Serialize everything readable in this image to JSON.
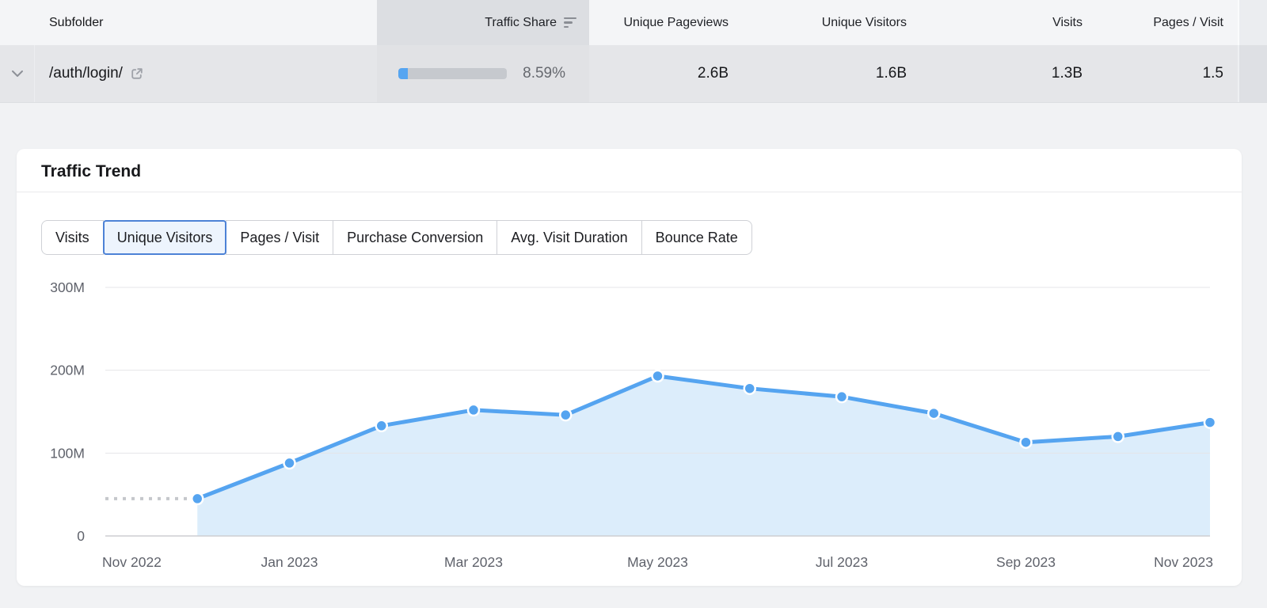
{
  "table": {
    "columns": [
      {
        "label": "Subfolder"
      },
      {
        "label": "Traffic Share",
        "sorted": true,
        "sort_icon": "sort-descending-icon"
      },
      {
        "label": "Unique Pageviews"
      },
      {
        "label": "Unique Visitors"
      },
      {
        "label": "Visits"
      },
      {
        "label": "Pages / Visit"
      }
    ],
    "row": {
      "subfolder": "/auth/login/",
      "traffic_share": "8.59%",
      "traffic_share_pct": 8.59,
      "unique_pageviews": "2.6B",
      "unique_visitors": "1.6B",
      "visits": "1.3B",
      "pages_per_visit": "1.5",
      "expander_icon": "chevron-down-icon",
      "external_icon": "external-link-icon"
    }
  },
  "card": {
    "title": "Traffic Trend",
    "tabs": [
      "Visits",
      "Unique Visitors",
      "Pages / Visit",
      "Purchase Conversion",
      "Avg. Visit Duration",
      "Bounce Rate"
    ],
    "selected_tab": "Unique Visitors"
  },
  "chart_data": {
    "type": "area",
    "title": "Traffic Trend",
    "metric": "Unique Visitors",
    "x": [
      "Dec 2022",
      "Jan 2023",
      "Feb 2023",
      "Mar 2023",
      "Apr 2023",
      "May 2023",
      "Jun 2023",
      "Jul 2023",
      "Aug 2023",
      "Sep 2023",
      "Oct 2023",
      "Nov 2023"
    ],
    "values_millions": [
      45,
      88,
      133,
      152,
      146,
      193,
      178,
      168,
      148,
      113,
      120,
      137
    ],
    "leading_dashed_value_millions": 45,
    "x_tick_labels": [
      "Nov 2022",
      "Jan 2023",
      "Mar 2023",
      "May 2023",
      "Jul 2023",
      "Sep 2023",
      "Nov 2023"
    ],
    "y_tick_labels": [
      "0",
      "100M",
      "200M",
      "300M"
    ],
    "ylim_millions": [
      0,
      300
    ],
    "grid": true,
    "legend": false,
    "colors": {
      "line": "#55a4f0",
      "point": "#55a4f0",
      "area_fill": "#dcedfb",
      "dashed": "#c5c7cb",
      "gridline": "#e4e5e8",
      "zero_line": "#cdced2",
      "axis_text": "#5f626b",
      "bar_fill": "#56a5f1",
      "bar_track": "#c6c9ce",
      "selected_tab_border": "#4d82d6",
      "selected_tab_bg": "#edf4fd"
    }
  }
}
